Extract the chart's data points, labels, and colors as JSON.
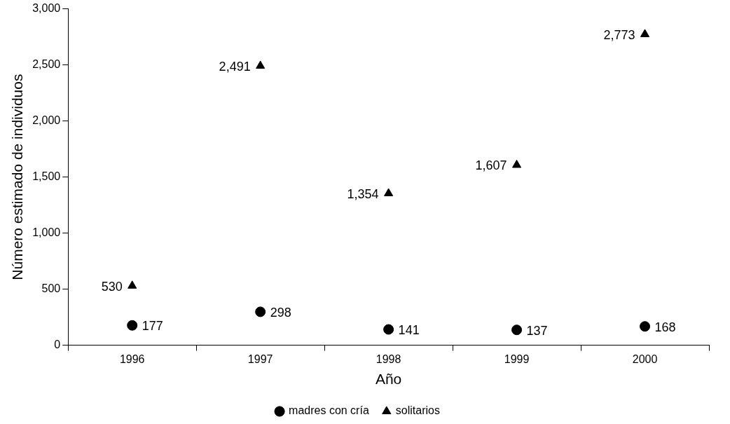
{
  "chart_data": {
    "type": "scatter",
    "xlabel": "Año",
    "ylabel": "Número estimado de individuos",
    "categories": [
      "1996",
      "1997",
      "1998",
      "1999",
      "2000"
    ],
    "series": [
      {
        "name": "madres con cría",
        "color": "#000000",
        "marker": "circle",
        "values": [
          177,
          298,
          141,
          137,
          168
        ],
        "value_labels": [
          "177",
          "298",
          "141",
          "137",
          "168"
        ]
      },
      {
        "name": "solitarios",
        "color": "#000000",
        "marker": "triangle",
        "values": [
          530,
          2491,
          1354,
          1607,
          2773
        ],
        "value_labels": [
          "530",
          "2,491",
          "1,354",
          "1,607",
          "2,773"
        ]
      }
    ],
    "ylim": [
      0,
      3000
    ],
    "yticks": [
      {
        "value": 0,
        "label": "0"
      },
      {
        "value": 500,
        "label": "500"
      },
      {
        "value": 1000,
        "label": "1,000"
      },
      {
        "value": 1500,
        "label": "1,500"
      },
      {
        "value": 2000,
        "label": "2,000"
      },
      {
        "value": 2500,
        "label": "2,500"
      },
      {
        "value": 3000,
        "label": "3,000"
      }
    ],
    "grid": false,
    "legend": "bottom"
  }
}
